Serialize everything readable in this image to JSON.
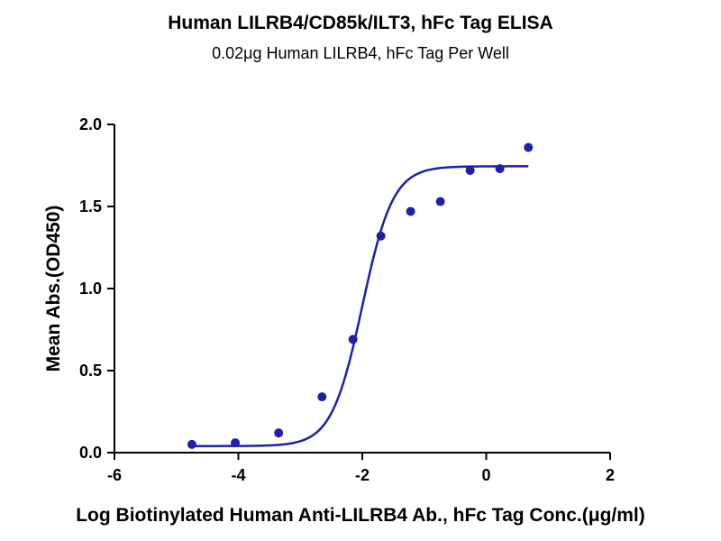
{
  "chart_data": {
    "type": "scatter",
    "title": "Human LILRB4/CD85k/ILT3, hFc Tag ELISA",
    "subtitle": "0.02μg Human LILRB4, hFc Tag Per Well",
    "xlabel": "Log Biotinylated Human Anti-LILRB4 Ab., hFc Tag Conc.(μg/ml)",
    "ylabel": "Mean Abs.(OD450)",
    "xlim": [
      -6,
      2
    ],
    "ylim": [
      0,
      2
    ],
    "xticks": [
      -6,
      -4,
      -2,
      0,
      2
    ],
    "yticks": [
      0.0,
      0.5,
      1.0,
      1.5,
      2.0
    ],
    "xtick_labels": [
      "-6",
      "-4",
      "-2",
      "0",
      "2"
    ],
    "ytick_labels": [
      "0.0",
      "0.5",
      "1.0",
      "1.5",
      "2.0"
    ],
    "grid": false,
    "series": [
      {
        "points": [
          {
            "x": -4.75,
            "y": 0.05
          },
          {
            "x": -4.05,
            "y": 0.06
          },
          {
            "x": -3.35,
            "y": 0.12
          },
          {
            "x": -2.65,
            "y": 0.34
          },
          {
            "x": -2.15,
            "y": 0.69
          },
          {
            "x": -1.7,
            "y": 1.32
          },
          {
            "x": -1.22,
            "y": 1.47
          },
          {
            "x": -0.74,
            "y": 1.53
          },
          {
            "x": -0.26,
            "y": 1.72
          },
          {
            "x": 0.22,
            "y": 1.73
          },
          {
            "x": 0.68,
            "y": 1.86
          }
        ],
        "fit": {
          "type": "4PL",
          "bottom": 0.04,
          "top": 1.745,
          "logEC50": -2.0,
          "hill": 1.75,
          "x_range": [
            -4.75,
            0.68
          ]
        },
        "color": "#1f1fa8"
      }
    ]
  }
}
